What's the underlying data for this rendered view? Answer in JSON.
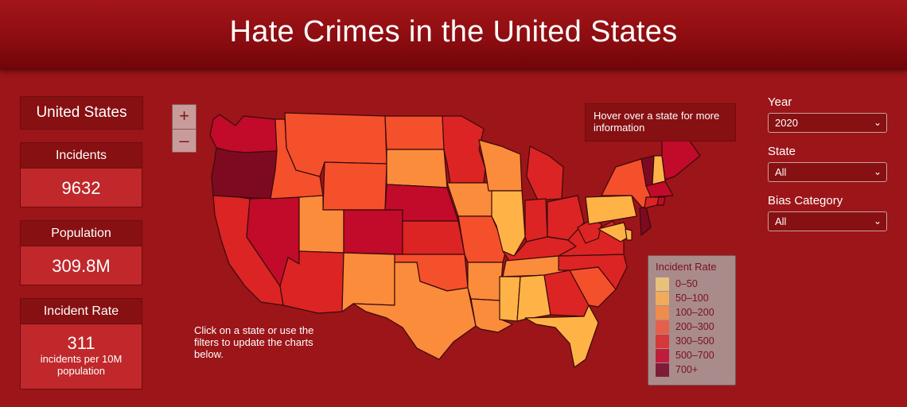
{
  "header": {
    "title": "Hate Crimes in the United States"
  },
  "country": "United States",
  "stats": {
    "incidents_label": "Incidents",
    "incidents_value": "9632",
    "population_label": "Population",
    "population_value": "309.8M",
    "rate_label": "Incident Rate",
    "rate_value": "311",
    "rate_unit": "incidents per 10M population"
  },
  "map": {
    "zoom_in": "+",
    "zoom_out": "–",
    "hover_hint": "Hover over a state for more information",
    "click_hint": "Click on a state or use the filters to update the charts below."
  },
  "legend": {
    "title": "Incident Rate",
    "items": [
      {
        "label": "0–50",
        "color": "#e7c27a"
      },
      {
        "label": "50–100",
        "color": "#eeac5c"
      },
      {
        "label": "100–200",
        "color": "#ee8c4c"
      },
      {
        "label": "200–300",
        "color": "#e5604a"
      },
      {
        "label": "300–500",
        "color": "#d4383a"
      },
      {
        "label": "500–700",
        "color": "#c01c3c"
      },
      {
        "label": "700+",
        "color": "#7e1c38"
      }
    ]
  },
  "filters": {
    "year_label": "Year",
    "year_value": "2020",
    "state_label": "State",
    "state_value": "All",
    "bias_label": "Bias Category",
    "bias_value": "All"
  },
  "colors": {
    "c50_100": "#ffb347",
    "c100_200": "#fb8c3c",
    "c200_300": "#f5502c",
    "c300_500": "#dc2424",
    "c500_700": "#c20a2a",
    "c700": "#7e0a22"
  }
}
